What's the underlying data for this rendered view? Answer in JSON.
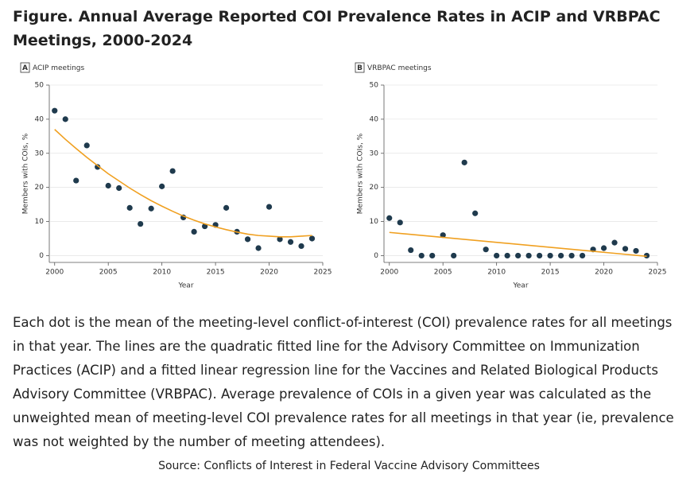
{
  "title": "Figure.  Annual Average Reported COI Prevalence Rates in ACIP and VRBPAC Meetings, 2000-2024",
  "caption": "Each dot is the mean of the meeting-level conflict-of-interest (COI) prevalence rates for all meetings in that year. The lines are the quadratic fitted line for the Advisory Committee on Immunization Practices (ACIP) and a fitted linear regression line for the Vaccines and Related Biological Products Advisory Committee (VRBPAC). Average prevalence of COIs in a given year was calculated as the unweighted mean of meeting-level COI prevalence rates for all meetings in that year (ie, prevalence was not weighted by the number of meeting attendees).",
  "source": "Source: Conflicts of Interest in Federal Vaccine Advisory Committees",
  "chart_data": [
    {
      "type": "scatter",
      "panel": "A",
      "title": "ACIP meetings",
      "xlabel": "Year",
      "ylabel": "Members with COIs, %",
      "x": [
        2000,
        2001,
        2002,
        2003,
        2004,
        2005,
        2006,
        2007,
        2008,
        2009,
        2010,
        2011,
        2012,
        2013,
        2014,
        2015,
        2016,
        2017,
        2018,
        2019,
        2020,
        2021,
        2022,
        2023,
        2024
      ],
      "series": [
        {
          "color": "#1f3a4d",
          "values": [
            42.5,
            40,
            22,
            32.3,
            26,
            20.5,
            19.8,
            14,
            9.3,
            13.8,
            20.3,
            24.8,
            11.2,
            7,
            8.6,
            9,
            14,
            7,
            4.8,
            2.2,
            14.3,
            4.8,
            4,
            2.8,
            5
          ]
        },
        {
          "type": "line",
          "color": "#f0a020",
          "x": [
            2000,
            2001,
            2002,
            2003,
            2004,
            2005,
            2006,
            2007,
            2008,
            2009,
            2010,
            2011,
            2012,
            2013,
            2014,
            2015,
            2016,
            2017,
            2018,
            2019,
            2020,
            2021,
            2022,
            2023,
            2024
          ],
          "values": [
            37,
            34.1,
            31.4,
            28.8,
            26.4,
            24,
            21.9,
            19.8,
            17.9,
            16.1,
            14.5,
            13,
            11.6,
            10.4,
            9.3,
            8.4,
            7.6,
            6.9,
            6.3,
            5.9,
            5.7,
            5.5,
            5.5,
            5.7,
            5.9
          ]
        }
      ],
      "xlim": [
        1999.5,
        2025
      ],
      "ylim": [
        -2,
        50
      ],
      "xticks": [
        2000,
        2005,
        2010,
        2015,
        2020,
        2025
      ],
      "yticks": [
        0,
        10,
        20,
        30,
        40,
        50
      ],
      "grid": true
    },
    {
      "type": "scatter",
      "panel": "B",
      "title": "VRBPAC meetings",
      "xlabel": "Year",
      "ylabel": "Members with COIs, %",
      "x": [
        2000,
        2001,
        2002,
        2003,
        2004,
        2005,
        2006,
        2007,
        2008,
        2009,
        2010,
        2011,
        2012,
        2013,
        2014,
        2015,
        2016,
        2017,
        2018,
        2019,
        2020,
        2021,
        2022,
        2023,
        2024
      ],
      "series": [
        {
          "color": "#1f3a4d",
          "values": [
            11,
            9.7,
            1.6,
            0,
            0,
            6,
            0,
            27.3,
            12.4,
            1.8,
            0,
            0,
            0,
            0,
            0,
            0,
            0,
            0,
            0,
            1.8,
            2.2,
            3.8,
            2,
            1.4,
            0
          ]
        },
        {
          "type": "line",
          "color": "#f0a020",
          "x": [
            2000,
            2024
          ],
          "values": [
            6.8,
            -0.2
          ]
        }
      ],
      "xlim": [
        1999.5,
        2025
      ],
      "ylim": [
        -2,
        50
      ],
      "xticks": [
        2000,
        2005,
        2010,
        2015,
        2020,
        2025
      ],
      "yticks": [
        0,
        10,
        20,
        30,
        40,
        50
      ],
      "grid": true
    }
  ]
}
